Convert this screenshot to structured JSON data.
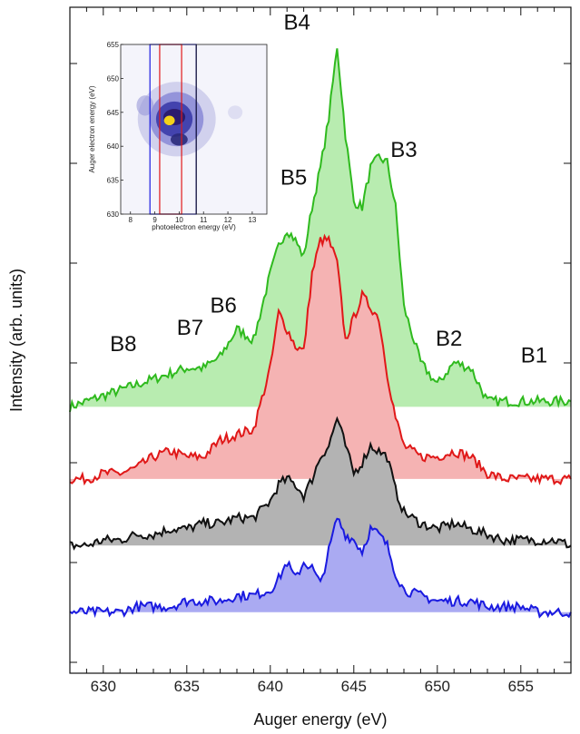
{
  "chart_data": {
    "type": "area",
    "xlabel": "Auger energy (eV)",
    "ylabel": "Intensity (arb. units)",
    "xlim": [
      628,
      658
    ],
    "xticks": [
      630,
      635,
      640,
      645,
      650,
      655
    ],
    "grid": false,
    "legend": "none",
    "annotations": [
      {
        "text": "B8",
        "x": 630.4,
        "y": 0.6
      },
      {
        "text": "B7",
        "x": 634.4,
        "y": 0.63
      },
      {
        "text": "B6",
        "x": 636.4,
        "y": 0.67
      },
      {
        "text": "B5",
        "x": 640.6,
        "y": 0.9
      },
      {
        "text": "B4",
        "x": 640.8,
        "y": 1.18
      },
      {
        "text": "B3",
        "x": 647.2,
        "y": 0.95
      },
      {
        "text": "B2",
        "x": 649.9,
        "y": 0.61
      },
      {
        "text": "B1",
        "x": 655.0,
        "y": 0.58
      }
    ],
    "series": [
      {
        "color": "#2fba1e",
        "fill": "#b8ecb0",
        "baseline": 0.5,
        "x": [
          628,
          629,
          630,
          631,
          632,
          633,
          634,
          635,
          636,
          637,
          638,
          639,
          640,
          640.5,
          641,
          641.5,
          642,
          642.5,
          643,
          643.5,
          644,
          644.5,
          645,
          645.5,
          646,
          646.5,
          647,
          647.5,
          648,
          649,
          650,
          651,
          652,
          653,
          654,
          655,
          656,
          657,
          658
        ],
        "y": [
          0.5,
          0.51,
          0.52,
          0.53,
          0.54,
          0.55,
          0.56,
          0.57,
          0.57,
          0.59,
          0.64,
          0.62,
          0.74,
          0.79,
          0.82,
          0.8,
          0.77,
          0.86,
          0.93,
          1.02,
          1.15,
          0.99,
          0.87,
          0.86,
          0.93,
          0.95,
          0.94,
          0.86,
          0.68,
          0.58,
          0.54,
          0.58,
          0.57,
          0.51,
          0.51,
          0.51,
          0.51,
          0.51,
          0.51
        ]
      },
      {
        "color": "#e01818",
        "fill": "#f5b3b3",
        "baseline": 0.37,
        "x": [
          628,
          629,
          630,
          631,
          632,
          633,
          634,
          635,
          636,
          637,
          638,
          639,
          640,
          640.5,
          641,
          641.5,
          642,
          642.5,
          643,
          643.5,
          644,
          644.5,
          645,
          645.5,
          646,
          646.5,
          647,
          647.5,
          648,
          649,
          650,
          651,
          652,
          653,
          654,
          655,
          656,
          657,
          658
        ],
        "y": [
          0.37,
          0.37,
          0.38,
          0.38,
          0.39,
          0.41,
          0.42,
          0.41,
          0.41,
          0.44,
          0.45,
          0.46,
          0.57,
          0.67,
          0.64,
          0.61,
          0.6,
          0.74,
          0.8,
          0.8,
          0.76,
          0.62,
          0.66,
          0.7,
          0.68,
          0.66,
          0.56,
          0.48,
          0.43,
          0.41,
          0.41,
          0.42,
          0.41,
          0.38,
          0.37,
          0.37,
          0.37,
          0.37,
          0.37
        ]
      },
      {
        "color": "#111111",
        "fill": "#b3b3b3",
        "baseline": 0.25,
        "x": [
          628,
          629,
          630,
          631,
          632,
          633,
          634,
          635,
          636,
          637,
          638,
          639,
          640,
          640.5,
          641,
          641.5,
          642,
          642.5,
          643,
          643.5,
          644,
          644.5,
          645,
          645.5,
          646,
          646.5,
          647,
          647.5,
          648,
          649,
          650,
          651,
          652,
          653,
          654,
          655,
          656,
          657,
          658
        ],
        "y": [
          0.25,
          0.25,
          0.26,
          0.26,
          0.27,
          0.27,
          0.28,
          0.28,
          0.29,
          0.29,
          0.3,
          0.3,
          0.33,
          0.36,
          0.37,
          0.36,
          0.34,
          0.37,
          0.41,
          0.43,
          0.48,
          0.43,
          0.38,
          0.4,
          0.43,
          0.42,
          0.41,
          0.35,
          0.31,
          0.29,
          0.28,
          0.29,
          0.28,
          0.27,
          0.26,
          0.26,
          0.26,
          0.26,
          0.25
        ]
      },
      {
        "color": "#1a1ae0",
        "fill": "#aaaaf2",
        "baseline": 0.13,
        "x": [
          628,
          629,
          630,
          631,
          632,
          633,
          634,
          635,
          636,
          637,
          638,
          639,
          640,
          640.5,
          641,
          641.5,
          642,
          642.5,
          643,
          643.5,
          644,
          644.5,
          645,
          645.5,
          646,
          646.5,
          647,
          647.5,
          648,
          649,
          650,
          651,
          652,
          653,
          654,
          655,
          656,
          657,
          658
        ],
        "y": [
          0.13,
          0.13,
          0.13,
          0.13,
          0.14,
          0.14,
          0.14,
          0.15,
          0.15,
          0.15,
          0.16,
          0.16,
          0.17,
          0.19,
          0.22,
          0.19,
          0.22,
          0.21,
          0.18,
          0.24,
          0.3,
          0.27,
          0.26,
          0.24,
          0.28,
          0.27,
          0.25,
          0.2,
          0.17,
          0.16,
          0.15,
          0.15,
          0.15,
          0.14,
          0.14,
          0.14,
          0.13,
          0.13,
          0.13
        ]
      }
    ],
    "inset": {
      "type": "heatmap",
      "xlabel": "photoelectron energy (eV)",
      "ylabel": "Auger electron energy (eV)",
      "xlim": [
        7.6,
        13.6
      ],
      "ylim": [
        630,
        655
      ],
      "xticks": [
        8,
        9,
        10,
        11,
        12,
        13
      ],
      "yticks": [
        630,
        635,
        640,
        645,
        650,
        655
      ],
      "regions": [
        {
          "color": "#1a1ae0",
          "x": [
            8.8,
            10.7
          ]
        },
        {
          "color": "#e01818",
          "x": [
            9.2,
            10.1
          ]
        }
      ]
    }
  }
}
